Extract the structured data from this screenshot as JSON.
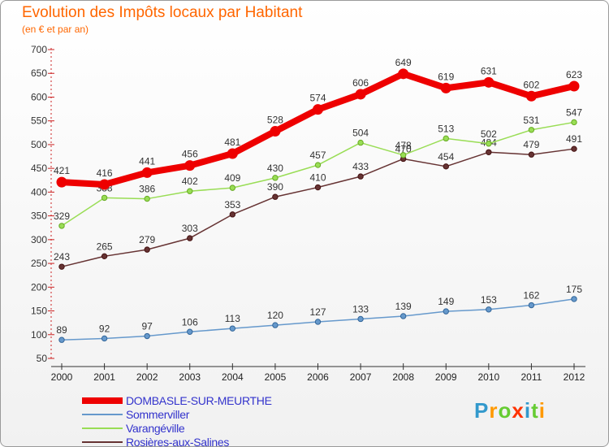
{
  "header": {
    "title": "Evolution des Impôts locaux par Habitant",
    "subtitle": "(en € et par an)"
  },
  "logo": {
    "letters": [
      "P",
      "r",
      "o",
      "x",
      "i",
      "t",
      "i"
    ],
    "colors": [
      "#3399cc",
      "#ff9900",
      "#66cc33",
      "#ff3300",
      "#3399cc",
      "#66cc33",
      "#ff9900"
    ]
  },
  "chart_data": {
    "type": "line",
    "title": "Evolution des Impôts locaux par Habitant",
    "subtitle": "(en € et par an)",
    "x": [
      "2000",
      "2001",
      "2002",
      "2003",
      "2004",
      "2005",
      "2006",
      "2007",
      "2008",
      "2009",
      "2010",
      "2011",
      "2012"
    ],
    "ylim": [
      50,
      700
    ],
    "yticks": [
      50,
      100,
      150,
      200,
      250,
      300,
      350,
      400,
      450,
      500,
      550,
      600,
      650,
      700
    ],
    "grid": false,
    "legend": "bottom-left",
    "series": [
      {
        "name": "DOMBASLE-SUR-MEURTHE",
        "color": "#ee0000",
        "values": [
          421,
          416,
          441,
          456,
          481,
          528,
          574,
          606,
          649,
          619,
          631,
          602,
          623
        ]
      },
      {
        "name": "Sommerviller",
        "color": "#6699cc",
        "values": [
          89,
          92,
          97,
          106,
          113,
          120,
          127,
          133,
          139,
          149,
          153,
          162,
          175
        ]
      },
      {
        "name": "Varangéville",
        "color": "#99dd55",
        "values": [
          329,
          388,
          386,
          402,
          409,
          430,
          457,
          504,
          478,
          513,
          502,
          531,
          547
        ]
      },
      {
        "name": "Rosières-aux-Salines",
        "color": "#663333",
        "values": [
          243,
          265,
          279,
          303,
          353,
          390,
          410,
          433,
          470,
          454,
          484,
          479,
          491
        ]
      }
    ]
  }
}
